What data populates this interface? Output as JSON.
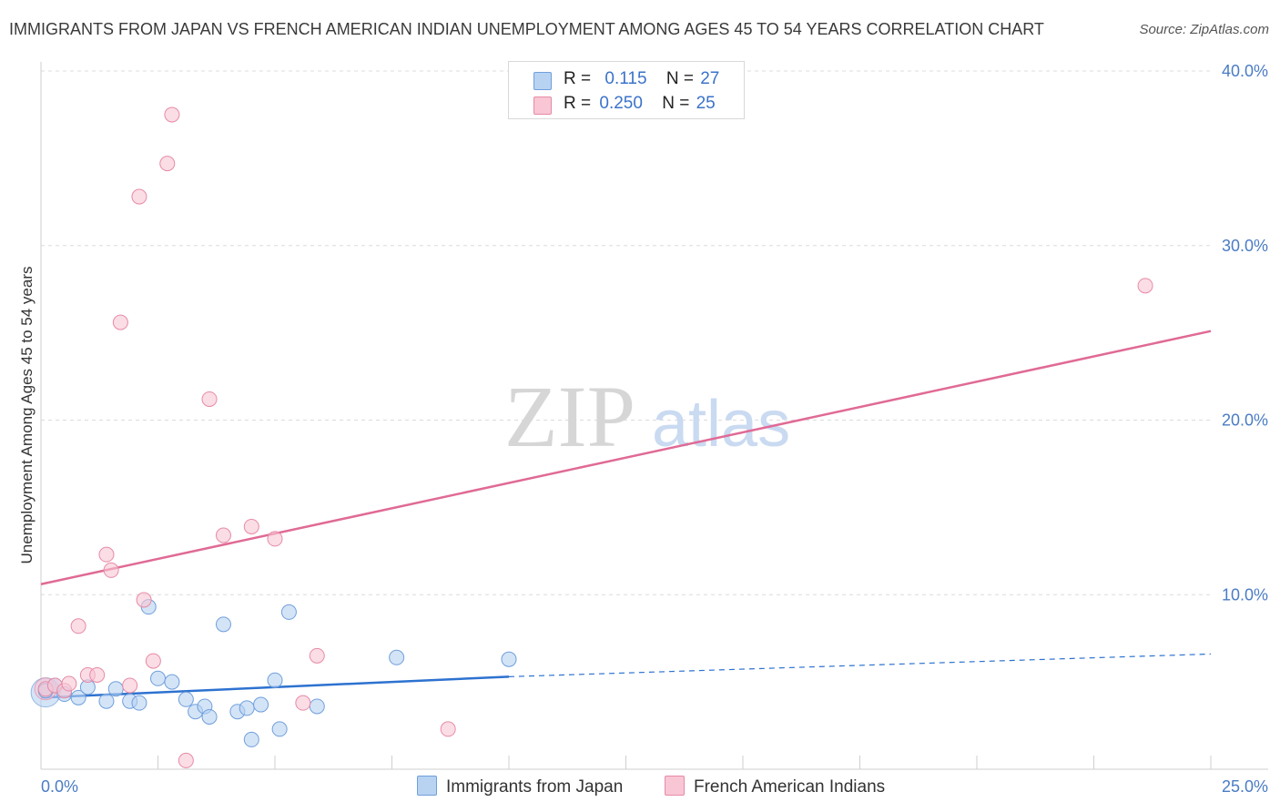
{
  "title": "IMMIGRANTS FROM JAPAN VS FRENCH AMERICAN INDIAN UNEMPLOYMENT AMONG AGES 45 TO 54 YEARS CORRELATION CHART",
  "source": "Source: ZipAtlas.com",
  "watermark": {
    "zip": "ZIP",
    "atlas": "atlas"
  },
  "legend": {
    "series1": {
      "r_label": "R =",
      "r_value": "0.115",
      "n_label": "N =",
      "n_value": "27"
    },
    "series2": {
      "r_label": "R =",
      "r_value": "0.250",
      "n_label": "N =",
      "n_value": "25"
    }
  },
  "colors": {
    "blue_fill": "#b8d2f2",
    "blue_stroke": "#6f9fdc",
    "blue_line": "#2d72d0",
    "pink_fill": "#f8c6d4",
    "pink_stroke": "#e78aa6",
    "pink_line": "#e06a95",
    "grid": "#dcdcdc",
    "tick_text": "#4a7cc4"
  },
  "chart_data": {
    "type": "scatter",
    "title": "IMMIGRANTS FROM JAPAN VS FRENCH AMERICAN INDIAN UNEMPLOYMENT AMONG AGES 45 TO 54 YEARS CORRELATION CHART",
    "xlabel": "",
    "ylabel": "Unemployment Among Ages 45 to 54 years",
    "xlim": [
      0,
      25
    ],
    "ylim": [
      0,
      40
    ],
    "x_tick_labels": [
      "0.0%",
      "25.0%"
    ],
    "y_ticks": [
      10,
      20,
      30,
      40
    ],
    "y_tick_labels": [
      "10.0%",
      "20.0%",
      "30.0%",
      "40.0%"
    ],
    "series": [
      {
        "name": "Immigrants from Japan",
        "color": "#6f9fdc",
        "x": [
          0.1,
          0.3,
          0.5,
          0.8,
          1.0,
          1.4,
          1.6,
          1.9,
          2.1,
          2.3,
          2.5,
          2.8,
          3.1,
          3.3,
          3.5,
          3.6,
          3.9,
          4.2,
          4.4,
          4.5,
          4.7,
          5.0,
          5.1,
          5.3,
          5.9,
          7.6,
          10.0
        ],
        "y": [
          4.5,
          4.8,
          4.3,
          4.1,
          4.7,
          3.9,
          4.6,
          3.9,
          3.8,
          9.3,
          5.2,
          5.0,
          4.0,
          3.3,
          3.6,
          3.0,
          8.3,
          3.3,
          3.5,
          1.7,
          3.7,
          5.1,
          2.3,
          9.0,
          3.6,
          6.4,
          6.3
        ]
      },
      {
        "name": "French American Indians",
        "color": "#e78aa6",
        "x": [
          0.1,
          0.3,
          0.5,
          0.8,
          1.0,
          1.2,
          1.4,
          1.5,
          1.7,
          1.9,
          2.1,
          2.2,
          2.4,
          2.7,
          2.8,
          3.1,
          3.6,
          3.9,
          4.5,
          5.0,
          5.6,
          5.9,
          8.7,
          23.6,
          0.6
        ],
        "y": [
          4.6,
          4.8,
          4.5,
          8.2,
          5.4,
          5.4,
          12.3,
          11.4,
          25.6,
          4.8,
          32.8,
          9.7,
          6.2,
          34.7,
          37.5,
          0.5,
          21.2,
          13.4,
          13.9,
          13.2,
          3.8,
          6.5,
          2.3,
          27.7,
          4.9
        ]
      }
    ],
    "trendlines": [
      {
        "series": "Immigrants from Japan",
        "x": [
          0,
          10
        ],
        "y": [
          4.1,
          5.3
        ],
        "dashed_extension": {
          "x": [
            10,
            25
          ],
          "y": [
            5.3,
            6.6
          ]
        }
      },
      {
        "series": "French American Indians",
        "x": [
          0,
          25
        ],
        "y": [
          10.6,
          25.1
        ]
      }
    ],
    "legend": [
      "Immigrants from Japan",
      "French American Indians"
    ]
  }
}
